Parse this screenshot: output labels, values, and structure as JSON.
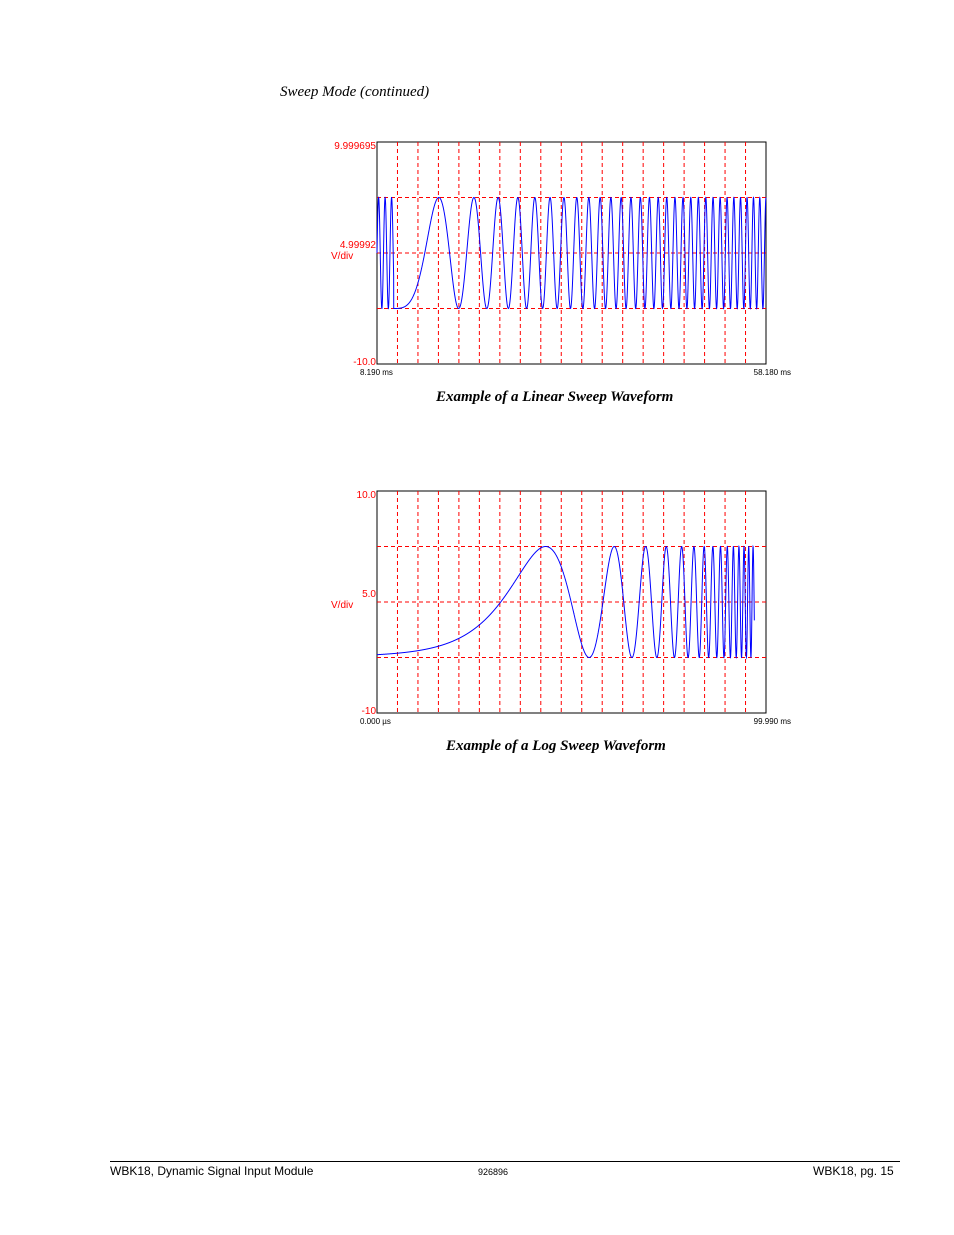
{
  "document": {
    "section_heading": "Sweep Mode (continued)"
  },
  "chart_data": [
    {
      "type": "line",
      "caption": "Example of a Linear Sweep Waveform",
      "y_tick_labels": [
        "9.999695",
        "4.99992",
        "-10.0"
      ],
      "y_unit_label": "V/div",
      "x_tick_labels": [
        "8.190 ms",
        "58.180 ms"
      ],
      "x_range_ms": [
        8.19,
        58.18
      ],
      "y_range": [
        -10.0,
        9.999695
      ],
      "signal": {
        "amplitude": 5.0,
        "offset": 0.0,
        "sweep": "linear"
      },
      "grid": true,
      "grid_color": "#ff0000",
      "trace_color": "#0000ff"
    },
    {
      "type": "line",
      "caption": "Example of a Log Sweep Waveform",
      "y_tick_labels": [
        "10.0",
        "5.0",
        "-10"
      ],
      "y_unit_label": "V/div",
      "x_tick_labels": [
        "0.000 µs",
        "99.990 ms"
      ],
      "x_range_ms": [
        0.0,
        99.99
      ],
      "y_range": [
        -10.0,
        10.0
      ],
      "signal": {
        "amplitude": 5.0,
        "offset": 0.0,
        "sweep": "logarithmic"
      },
      "grid": true,
      "grid_color": "#ff0000",
      "trace_color": "#0000ff"
    }
  ],
  "footer": {
    "left": "WBK18, Dynamic Signal Input Module",
    "center": "926896",
    "right": "WBK18, pg. 15"
  }
}
